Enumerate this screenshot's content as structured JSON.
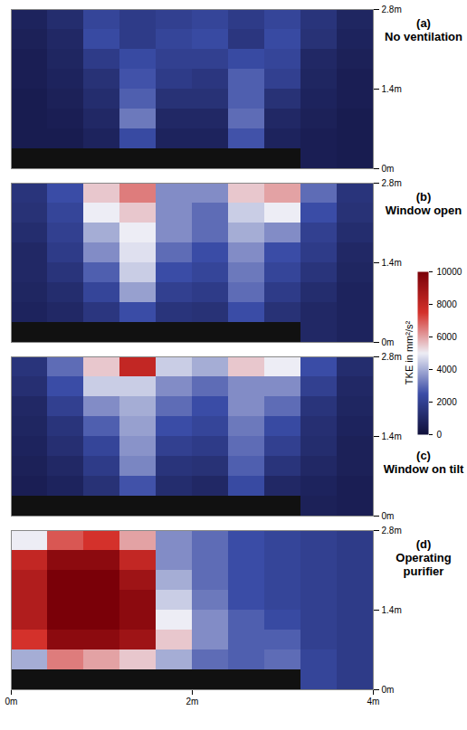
{
  "chart_data": {
    "type": "heatmap",
    "xlim": [
      0,
      4
    ],
    "ylim": [
      0,
      2.8
    ],
    "xticks": [
      {
        "value": 0,
        "label": "0m"
      },
      {
        "value": 2,
        "label": "2m"
      },
      {
        "value": 4,
        "label": "4m"
      }
    ],
    "yticks": [
      {
        "value": 0,
        "label": "0m"
      },
      {
        "value": 1.4,
        "label": "1.4m"
      },
      {
        "value": 2.8,
        "label": "2.8m"
      }
    ],
    "x_edges": [
      0,
      0.4,
      0.8,
      1.2,
      1.6,
      2.0,
      2.4,
      2.8,
      3.2,
      3.6,
      4.0
    ],
    "y_edges": [
      2.8,
      2.45,
      2.1,
      1.75,
      1.4,
      1.05,
      0.7,
      0.35,
      0
    ],
    "colorbar": {
      "label": "TKE in mm²/s²",
      "range": [
        0,
        10000
      ],
      "ticks": [
        0,
        2000,
        4000,
        6000,
        8000,
        10000
      ]
    },
    "panels": [
      {
        "label": "(a)",
        "title": "No ventilation",
        "values": [
          [
            800,
            1200,
            2200,
            1800,
            2000,
            2200,
            1800,
            2200,
            1500,
            900
          ],
          [
            700,
            1000,
            2400,
            1800,
            2200,
            2400,
            1600,
            2400,
            1400,
            800
          ],
          [
            600,
            900,
            1800,
            2400,
            2000,
            2000,
            2400,
            2200,
            1000,
            700
          ],
          [
            600,
            800,
            1400,
            2600,
            1800,
            1600,
            2800,
            2000,
            900,
            600
          ],
          [
            500,
            700,
            1200,
            2800,
            1400,
            1400,
            2800,
            1400,
            800,
            600
          ],
          [
            500,
            600,
            1000,
            3200,
            1000,
            1000,
            3000,
            1000,
            700,
            500
          ],
          [
            500,
            500,
            800,
            2400,
            800,
            800,
            2600,
            800,
            600,
            500
          ],
          [
            null,
            null,
            null,
            null,
            null,
            null,
            null,
            null,
            600,
            500
          ]
        ]
      },
      {
        "label": "(b)",
        "title": "Window open",
        "values": [
          [
            1500,
            2500,
            5500,
            6500,
            3500,
            3500,
            5500,
            6000,
            3000,
            1500
          ],
          [
            1400,
            2200,
            5000,
            5500,
            3500,
            3000,
            4500,
            5000,
            2500,
            1400
          ],
          [
            1200,
            2000,
            4000,
            5000,
            3500,
            3000,
            4000,
            3500,
            2000,
            1200
          ],
          [
            1000,
            1800,
            3500,
            4800,
            3000,
            2500,
            3500,
            2500,
            1800,
            1000
          ],
          [
            1000,
            1500,
            2800,
            4500,
            2500,
            2200,
            3200,
            2200,
            1500,
            900
          ],
          [
            900,
            1200,
            2200,
            3800,
            2000,
            1800,
            3000,
            1800,
            1200,
            800
          ],
          [
            800,
            1000,
            1600,
            2500,
            1500,
            1400,
            2500,
            1400,
            1000,
            800
          ],
          [
            null,
            null,
            null,
            null,
            null,
            null,
            null,
            null,
            1000,
            800
          ]
        ]
      },
      {
        "label": "(c)",
        "title": "Window on tilt",
        "values": [
          [
            1500,
            3000,
            5500,
            8000,
            4500,
            4000,
            5500,
            5000,
            2500,
            1200
          ],
          [
            1300,
            2500,
            4500,
            4500,
            3500,
            3000,
            3500,
            3500,
            2000,
            1000
          ],
          [
            1000,
            2000,
            3500,
            4000,
            3000,
            2500,
            3500,
            3000,
            1500,
            900
          ],
          [
            900,
            1500,
            2800,
            3800,
            2500,
            2200,
            3200,
            2400,
            1300,
            800
          ],
          [
            800,
            1300,
            2200,
            3600,
            2000,
            1800,
            3000,
            2000,
            1200,
            700
          ],
          [
            700,
            1000,
            1800,
            3400,
            1500,
            1400,
            2800,
            1500,
            1000,
            700
          ],
          [
            600,
            800,
            1400,
            2600,
            1200,
            1000,
            2400,
            1000,
            800,
            600
          ],
          [
            null,
            null,
            null,
            null,
            null,
            null,
            null,
            null,
            700,
            600
          ]
        ]
      },
      {
        "label": "(d)",
        "title": "Operating purifier",
        "values": [
          [
            5000,
            7000,
            7500,
            6000,
            3500,
            3000,
            2500,
            2200,
            2000,
            1800
          ],
          [
            8000,
            9500,
            9500,
            8000,
            3500,
            3000,
            2500,
            2200,
            2000,
            1800
          ],
          [
            8500,
            10000,
            10000,
            9000,
            4000,
            3000,
            2500,
            2200,
            2000,
            1800
          ],
          [
            8500,
            10000,
            10000,
            9500,
            4500,
            3200,
            2500,
            2200,
            2000,
            1800
          ],
          [
            8500,
            10000,
            10000,
            9500,
            5000,
            3500,
            2800,
            2400,
            2000,
            1800
          ],
          [
            7500,
            9500,
            9500,
            9000,
            5500,
            3500,
            2800,
            2800,
            2000,
            1800
          ],
          [
            4000,
            6500,
            6000,
            5500,
            4000,
            3000,
            2800,
            3000,
            2200,
            1800
          ],
          [
            null,
            null,
            null,
            null,
            null,
            null,
            null,
            null,
            2200,
            1800
          ]
        ]
      }
    ]
  }
}
